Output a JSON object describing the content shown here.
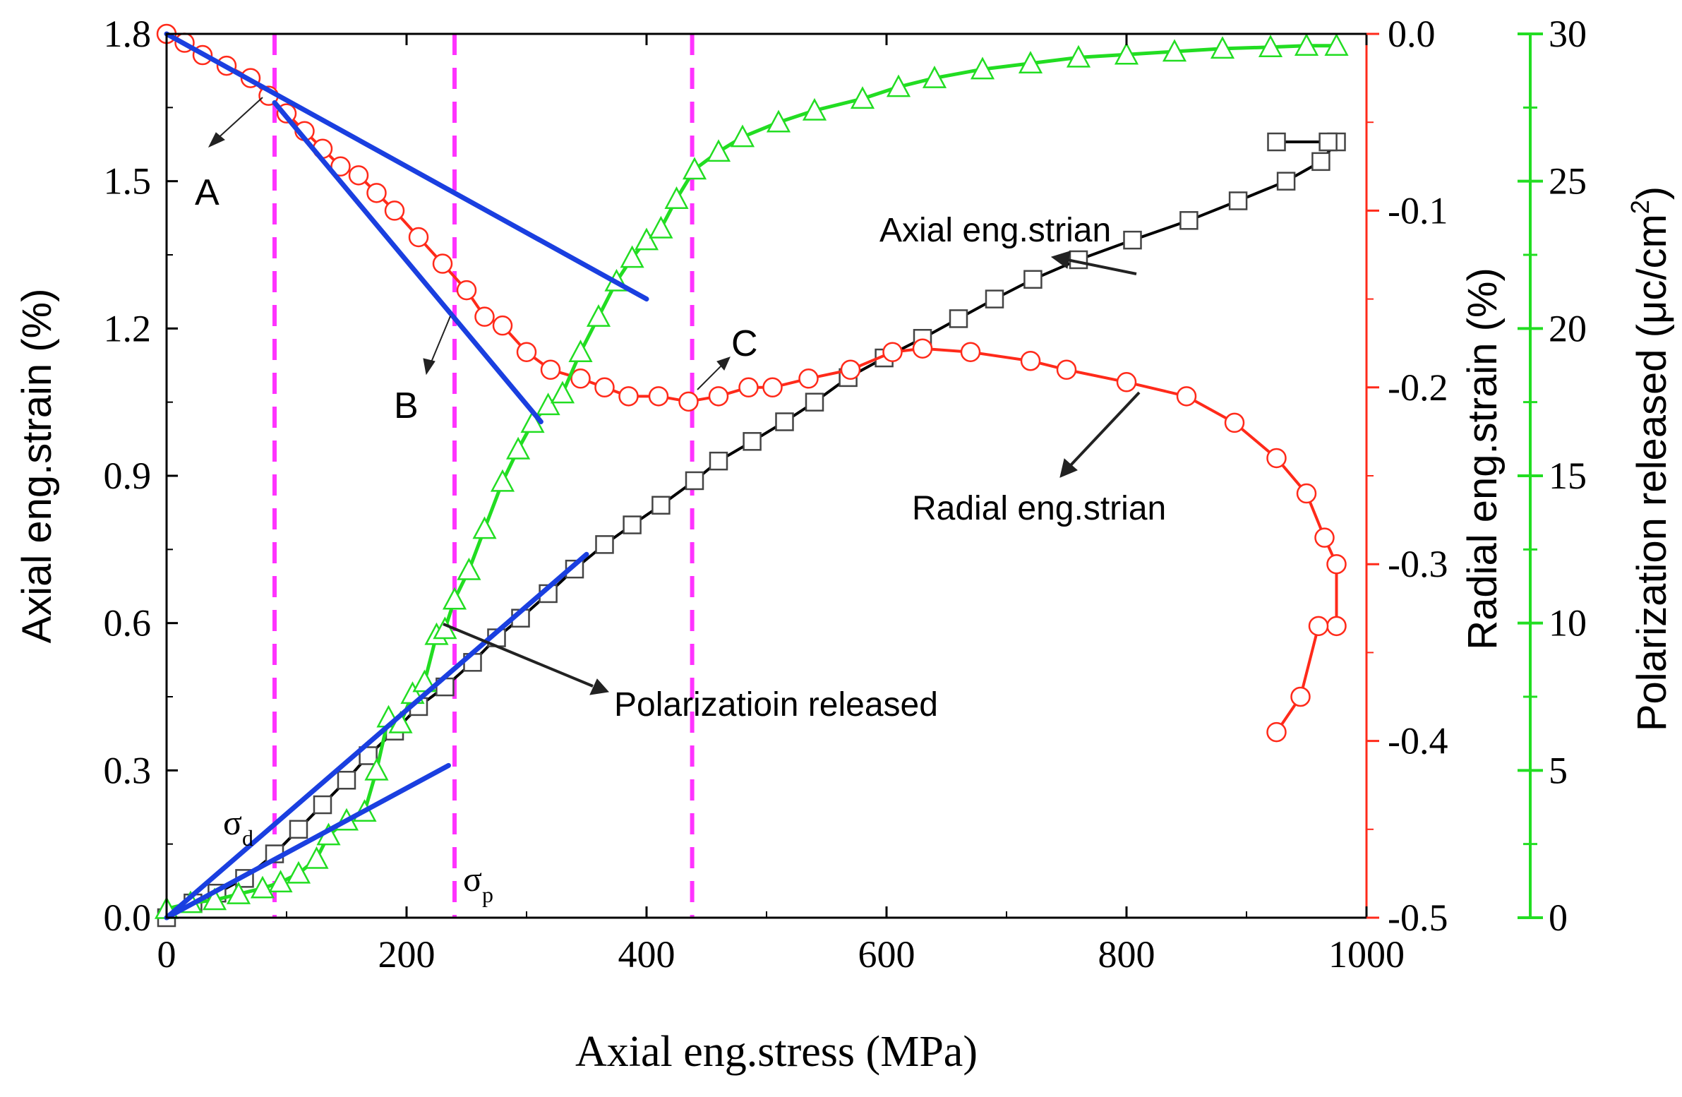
{
  "chart_data": {
    "type": "line",
    "title": "",
    "xlabel": "Axial eng.stress (MPa)",
    "ylabel_left": "Axial eng.strain (%)",
    "ylabel_right1": "Radial eng.strain (%)",
    "ylabel_right2": "Polarization released (μc/cm²)",
    "ylabel_right2_main": "Polarization released (μc/cm",
    "ylabel_right2_sup": "2",
    "ylabel_right2_close": ")",
    "xlim": [
      0,
      1000
    ],
    "ylim_left": [
      0,
      1.8
    ],
    "ylim_right1": [
      -0.5,
      0.0
    ],
    "ylim_right2": [
      0,
      30
    ],
    "xticks": [
      0,
      200,
      400,
      600,
      800,
      1000
    ],
    "xtick_labels": [
      "0",
      "200",
      "400",
      "600",
      "800",
      "1000"
    ],
    "yticks_left": [
      0,
      0.3,
      0.6,
      0.9,
      1.2,
      1.5,
      1.8
    ],
    "ytick_labels_left": [
      "0.0",
      "0.3",
      "0.6",
      "0.9",
      "1.2",
      "1.5",
      "1.8"
    ],
    "yticks_right1": [
      0,
      -0.1,
      -0.2,
      -0.3,
      -0.4,
      -0.5
    ],
    "ytick_labels_right1": [
      "0.0",
      "-0.1",
      "-0.2",
      "-0.3",
      "-0.4",
      "-0.5"
    ],
    "yticks_right2": [
      0,
      5,
      10,
      15,
      20,
      25,
      30
    ],
    "ytick_labels_right2": [
      "0",
      "5",
      "10",
      "15",
      "20",
      "25",
      "30"
    ],
    "colors": {
      "axial": "#000000",
      "radial": "#ff2a1a",
      "polarization": "#22dd22",
      "fit": "#1a3fe0",
      "marker_line": "#ff33ff"
    },
    "series": [
      {
        "name": "Axial eng.strian",
        "axis": "left",
        "marker": "square",
        "x": [
          0,
          22,
          42,
          65,
          90,
          110,
          130,
          150,
          168,
          190,
          210,
          232,
          255,
          275,
          295,
          318,
          340,
          365,
          388,
          412,
          440,
          460,
          488,
          515,
          540,
          568,
          598,
          630,
          660,
          690,
          722,
          760,
          805,
          852,
          893,
          933,
          962,
          975,
          968,
          925
        ],
        "y": [
          0,
          0.03,
          0.05,
          0.08,
          0.13,
          0.18,
          0.23,
          0.28,
          0.33,
          0.38,
          0.43,
          0.47,
          0.52,
          0.57,
          0.61,
          0.66,
          0.71,
          0.76,
          0.8,
          0.84,
          0.89,
          0.93,
          0.97,
          1.01,
          1.05,
          1.1,
          1.14,
          1.18,
          1.22,
          1.26,
          1.3,
          1.34,
          1.38,
          1.42,
          1.46,
          1.5,
          1.54,
          1.58,
          1.58,
          1.58
        ]
      },
      {
        "name": "Radial eng.strian",
        "axis": "right1",
        "marker": "circle",
        "x": [
          0,
          15,
          30,
          50,
          70,
          85,
          100,
          115,
          130,
          145,
          160,
          175,
          190,
          210,
          230,
          250,
          265,
          280,
          300,
          320,
          345,
          365,
          385,
          410,
          435,
          460,
          485,
          505,
          535,
          570,
          605,
          630,
          670,
          720,
          750,
          800,
          850,
          890,
          925,
          950,
          965,
          975,
          975,
          960,
          945,
          925
        ],
        "y": [
          0,
          -0.005,
          -0.012,
          -0.018,
          -0.025,
          -0.035,
          -0.045,
          -0.055,
          -0.065,
          -0.075,
          -0.08,
          -0.09,
          -0.1,
          -0.115,
          -0.13,
          -0.145,
          -0.16,
          -0.165,
          -0.18,
          -0.19,
          -0.195,
          -0.2,
          -0.205,
          -0.205,
          -0.208,
          -0.205,
          -0.2,
          -0.2,
          -0.195,
          -0.19,
          -0.18,
          -0.178,
          -0.18,
          -0.185,
          -0.19,
          -0.197,
          -0.205,
          -0.22,
          -0.24,
          -0.26,
          -0.285,
          -0.3,
          -0.335,
          -0.335,
          -0.375,
          -0.395
        ]
      },
      {
        "name": "Polarizatioin released",
        "axis": "right2",
        "marker": "triangle",
        "x": [
          0,
          20,
          40,
          60,
          80,
          95,
          110,
          125,
          135,
          150,
          165,
          175,
          185,
          195,
          205,
          215,
          225,
          232,
          240,
          252,
          265,
          280,
          293,
          305,
          318,
          330,
          345,
          360,
          375,
          388,
          400,
          412,
          425,
          440,
          460,
          480,
          510,
          540,
          580,
          610,
          640,
          680,
          720,
          760,
          800,
          840,
          880,
          920,
          950,
          975
        ],
        "y": [
          0.3,
          0.5,
          0.6,
          0.8,
          1.0,
          1.2,
          1.5,
          2.0,
          2.8,
          3.3,
          3.6,
          5.0,
          6.8,
          6.6,
          7.6,
          8.0,
          9.6,
          9.8,
          10.8,
          11.8,
          13.2,
          14.8,
          15.9,
          16.8,
          17.4,
          17.8,
          19.2,
          20.4,
          21.6,
          22.4,
          23.0,
          23.4,
          24.4,
          25.4,
          26.0,
          26.5,
          27.0,
          27.4,
          27.8,
          28.2,
          28.5,
          28.8,
          29.0,
          29.2,
          29.3,
          29.4,
          29.5,
          29.55,
          29.6,
          29.6
        ]
      }
    ],
    "fit_lines": [
      {
        "from": [
          0,
          1.8
        ],
        "to": [
          400,
          1.26
        ]
      },
      {
        "from": [
          90,
          1.66
        ],
        "to": [
          312,
          1.01
        ]
      },
      {
        "from": [
          0,
          0.0
        ],
        "to": [
          350,
          0.74
        ]
      },
      {
        "from": [
          0,
          0.0
        ],
        "to": [
          235,
          0.31
        ]
      }
    ],
    "vertical_lines_x": [
      90,
      240,
      438
    ],
    "annotations": {
      "A": "A",
      "B": "B",
      "C": "C",
      "sigma": "σ",
      "sigma_d_sub": "d",
      "sigma_p_sub": "p",
      "axial_label": "Axial eng.strian",
      "radial_label": "Radial eng.strian",
      "polarization_label": "Polarizatioin released"
    }
  }
}
